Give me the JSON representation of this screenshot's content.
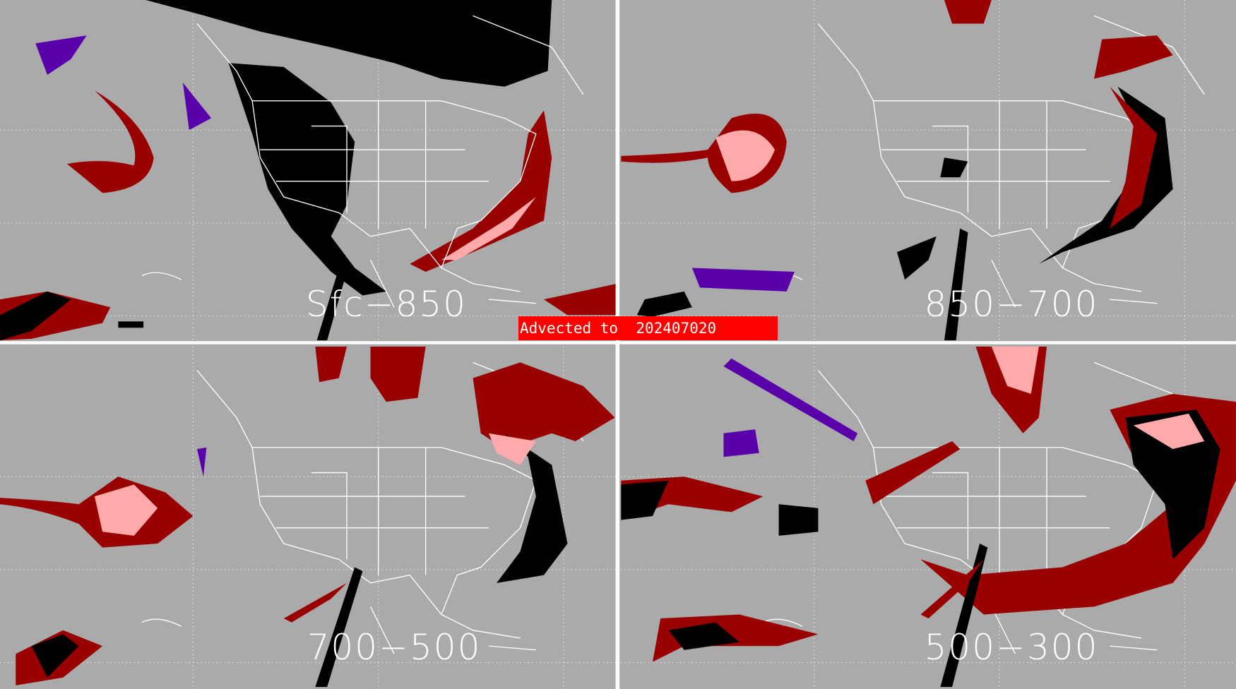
{
  "panels": [
    {
      "label": "Sfc−850"
    },
    {
      "label": "850−700"
    },
    {
      "label": "700−500"
    },
    {
      "label": "500−300"
    }
  ],
  "advected_label": "Advected to  202407020",
  "colors": {
    "background": "#aaaaaa",
    "black_category": "#000000",
    "dark_red_category": "#990000",
    "pink_category": "#ffaaaa",
    "purple_category": "#5a00aa",
    "banner": "#ff0000",
    "outlines": "#ffffff"
  }
}
